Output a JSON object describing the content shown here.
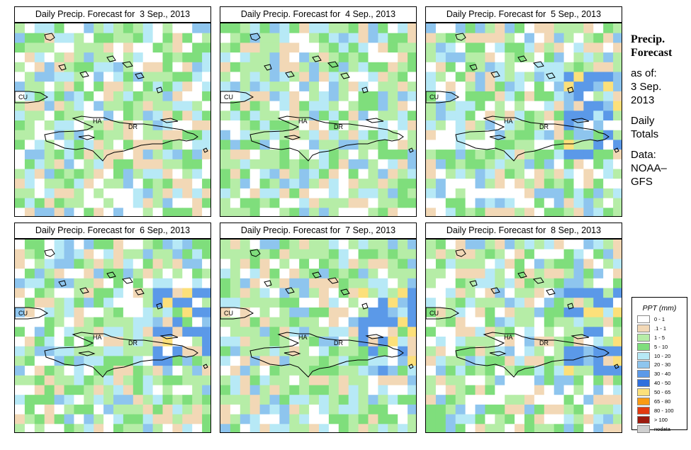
{
  "panels": [
    {
      "title": "Daily Precip. Forecast for  3 Sep., 2013",
      "seed": 3
    },
    {
      "title": "Daily Precip. Forecast for  4 Sep., 2013",
      "seed": 4
    },
    {
      "title": "Daily Precip. Forecast for  5 Sep., 2013",
      "seed": 5
    },
    {
      "title": "Daily Precip. Forecast for  6 Sep., 2013",
      "seed": 6
    },
    {
      "title": "Daily Precip. Forecast for  7 Sep., 2013",
      "seed": 7
    },
    {
      "title": "Daily Precip. Forecast for  8 Sep., 2013",
      "seed": 8
    }
  ],
  "map_labels": {
    "cuba": "CU",
    "haiti": "HA",
    "dominican_republic": "DR"
  },
  "side": {
    "title_line1": "Precip.",
    "title_line2": "Forecast",
    "asof": "as of:",
    "date_line1": "3 Sep.",
    "date_line2": "2013",
    "totals_line1": "Daily",
    "totals_line2": "Totals",
    "data_line1": "Data:",
    "data_line2": "NOAA–",
    "data_line3": "GFS"
  },
  "legend": {
    "title": "PPT (mm)",
    "classes": [
      {
        "label": "0 - 1",
        "color": "#ffffff"
      },
      {
        "label": ".1 - 1",
        "color": "#f2d8b6"
      },
      {
        "label": "1 - 5",
        "color": "#b6eda7"
      },
      {
        "label": "5 - 10",
        "color": "#7fde7c"
      },
      {
        "label": "10 - 20",
        "color": "#b7e9f6"
      },
      {
        "label": "20 - 30",
        "color": "#8ec5ee"
      },
      {
        "label": "30 - 40",
        "color": "#5b99e8"
      },
      {
        "label": "40 - 50",
        "color": "#2f6fde"
      },
      {
        "label": "50 - 65",
        "color": "#fce07a"
      },
      {
        "label": "65 - 80",
        "color": "#fa9a14"
      },
      {
        "label": "80 - 100",
        "color": "#e23a10"
      },
      {
        "label": "> 100",
        "color": "#9c1a0e"
      },
      {
        "label": "nodata",
        "color": "#cfcfcf"
      }
    ]
  }
}
